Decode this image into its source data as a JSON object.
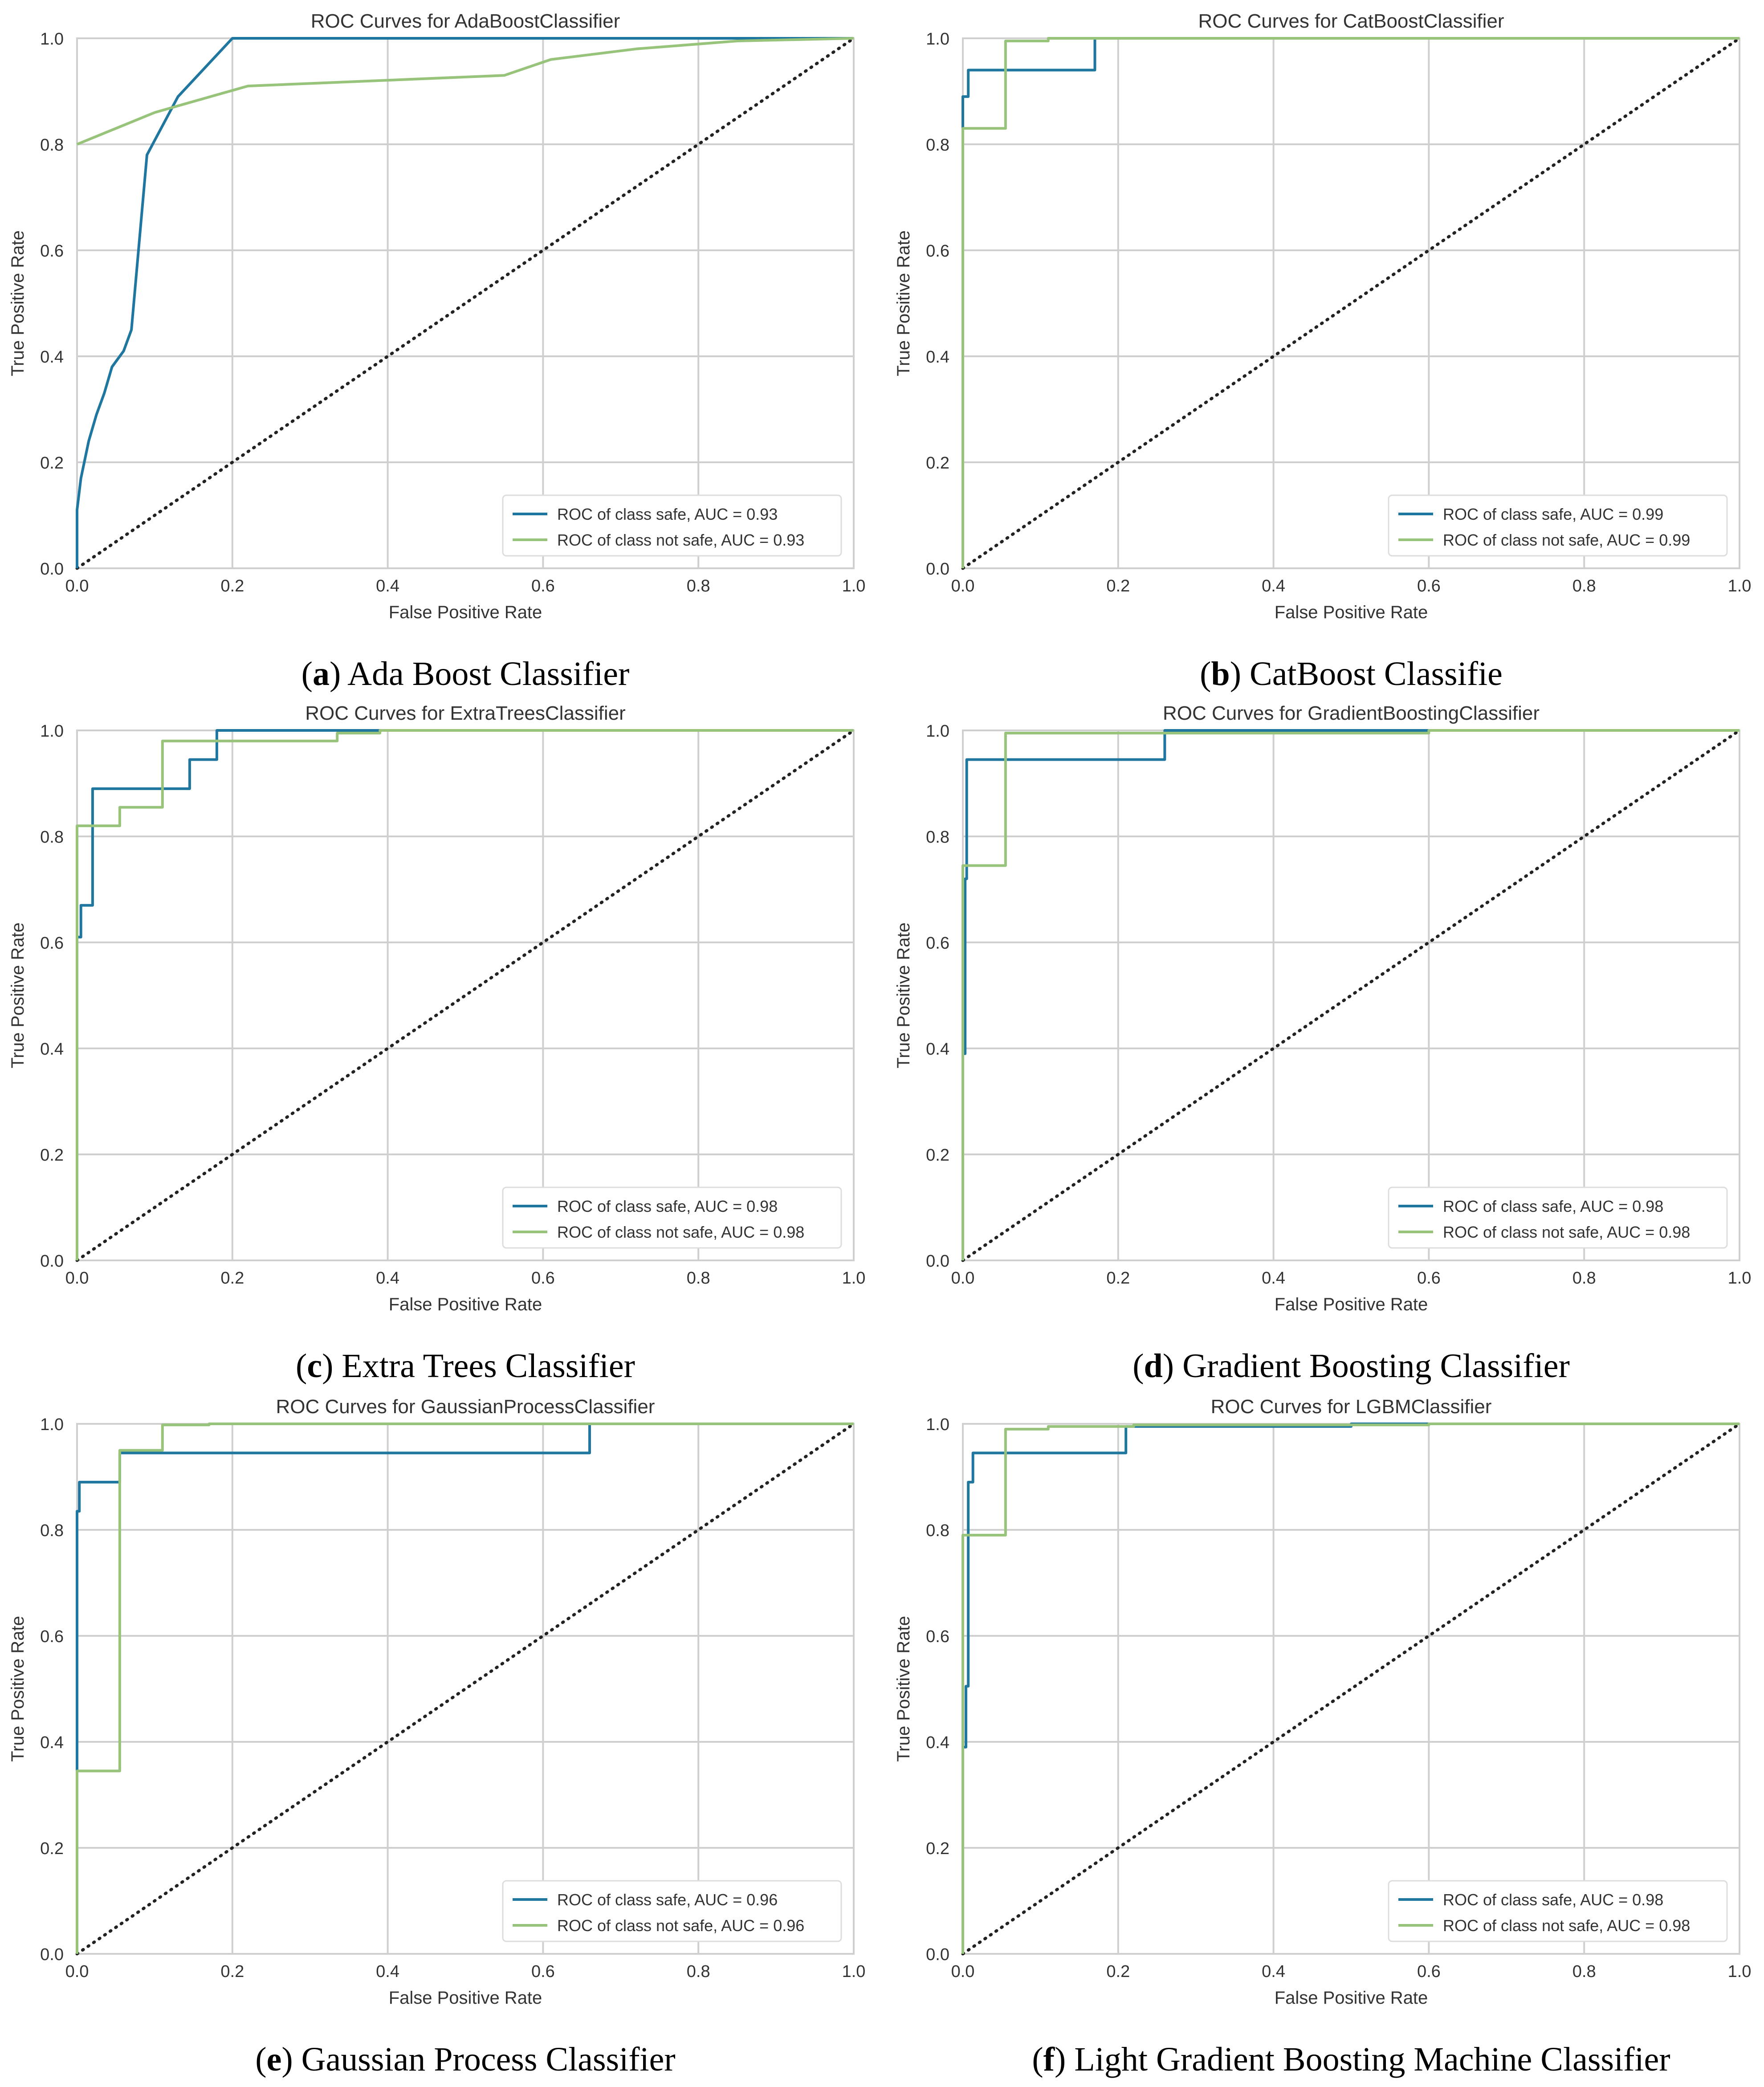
{
  "figure": {
    "colors": {
      "safe": "#1f77a0",
      "not_safe": "#98c37a",
      "grid": "#cfcfcf",
      "diagonal": "#222222",
      "text": "#333333"
    }
  },
  "chart_data": [
    {
      "type": "line",
      "panel_letter": "a",
      "caption": "Ada Boost Classifier",
      "title": "ROC Curves for AdaBoostClassifier",
      "xlabel": "False Positive Rate",
      "ylabel": "True Positive Rate",
      "xlim": [
        0,
        1
      ],
      "ylim": [
        0,
        1
      ],
      "x_ticks": [
        "0.0",
        "0.2",
        "0.4",
        "0.6",
        "0.8",
        "1.0"
      ],
      "y_ticks": [
        "0.0",
        "0.2",
        "0.4",
        "0.6",
        "0.8",
        "1.0"
      ],
      "grid": true,
      "legend_position": "lower-right",
      "series": [
        {
          "name": "ROC of class safe, AUC = 0.93",
          "key": "safe",
          "points": [
            [
              0,
              0
            ],
            [
              0,
              0.11
            ],
            [
              0.005,
              0.17
            ],
            [
              0.015,
              0.24
            ],
            [
              0.025,
              0.29
            ],
            [
              0.035,
              0.33
            ],
            [
              0.045,
              0.38
            ],
            [
              0.06,
              0.41
            ],
            [
              0.07,
              0.45
            ],
            [
              0.09,
              0.78
            ],
            [
              0.13,
              0.89
            ],
            [
              0.2,
              1.0
            ],
            [
              1,
              1
            ]
          ]
        },
        {
          "name": "ROC of class not safe, AUC = 0.93",
          "key": "not_safe",
          "points": [
            [
              0,
              0.8
            ],
            [
              0.1,
              0.86
            ],
            [
              0.22,
              0.91
            ],
            [
              0.55,
              0.93
            ],
            [
              0.61,
              0.96
            ],
            [
              0.72,
              0.98
            ],
            [
              0.85,
              0.995
            ],
            [
              1,
              1
            ]
          ]
        }
      ]
    },
    {
      "type": "line",
      "panel_letter": "b",
      "caption": "CatBoost Classifie",
      "title": "ROC Curves for CatBoostClassifier",
      "xlabel": "False Positive Rate",
      "ylabel": "True Positive Rate",
      "xlim": [
        0,
        1
      ],
      "ylim": [
        0,
        1
      ],
      "x_ticks": [
        "0.0",
        "0.2",
        "0.4",
        "0.6",
        "0.8",
        "1.0"
      ],
      "y_ticks": [
        "0.0",
        "0.2",
        "0.4",
        "0.6",
        "0.8",
        "1.0"
      ],
      "grid": true,
      "legend_position": "lower-right",
      "series": [
        {
          "name": "ROC of class safe, AUC = 0.99",
          "key": "safe",
          "points": [
            [
              0,
              0
            ],
            [
              0,
              0.89
            ],
            [
              0.007,
              0.89
            ],
            [
              0.007,
              0.94
            ],
            [
              0.17,
              0.94
            ],
            [
              0.17,
              1.0
            ],
            [
              1,
              1
            ]
          ]
        },
        {
          "name": "ROC of class not safe, AUC = 0.99",
          "key": "not_safe",
          "points": [
            [
              0,
              0
            ],
            [
              0,
              0.83
            ],
            [
              0.055,
              0.83
            ],
            [
              0.055,
              0.995
            ],
            [
              0.11,
              0.995
            ],
            [
              0.11,
              1.0
            ],
            [
              1,
              1
            ]
          ]
        }
      ]
    },
    {
      "type": "line",
      "panel_letter": "c",
      "caption": "Extra Trees Classifier",
      "title": "ROC Curves for ExtraTreesClassifier",
      "xlabel": "False Positive Rate",
      "ylabel": "True Positive Rate",
      "xlim": [
        0,
        1
      ],
      "ylim": [
        0,
        1
      ],
      "x_ticks": [
        "0.0",
        "0.2",
        "0.4",
        "0.6",
        "0.8",
        "1.0"
      ],
      "y_ticks": [
        "0.0",
        "0.2",
        "0.4",
        "0.6",
        "0.8",
        "1.0"
      ],
      "grid": true,
      "legend_position": "lower-right",
      "series": [
        {
          "name": "ROC of class safe, AUC = 0.98",
          "key": "safe",
          "points": [
            [
              0,
              0
            ],
            [
              0,
              0.61
            ],
            [
              0.005,
              0.61
            ],
            [
              0.005,
              0.67
            ],
            [
              0.02,
              0.67
            ],
            [
              0.02,
              0.89
            ],
            [
              0.145,
              0.89
            ],
            [
              0.145,
              0.945
            ],
            [
              0.18,
              0.945
            ],
            [
              0.18,
              1.0
            ],
            [
              1,
              1
            ]
          ]
        },
        {
          "name": "ROC of class not safe, AUC = 0.98",
          "key": "not_safe",
          "points": [
            [
              0,
              0
            ],
            [
              0,
              0.82
            ],
            [
              0.055,
              0.82
            ],
            [
              0.055,
              0.855
            ],
            [
              0.11,
              0.855
            ],
            [
              0.11,
              0.98
            ],
            [
              0.335,
              0.98
            ],
            [
              0.335,
              0.995
            ],
            [
              0.39,
              0.995
            ],
            [
              0.39,
              1.0
            ],
            [
              1,
              1
            ]
          ]
        }
      ]
    },
    {
      "type": "line",
      "panel_letter": "d",
      "caption": "Gradient Boosting Classifier",
      "title": "ROC Curves for GradientBoostingClassifier",
      "xlabel": "False Positive Rate",
      "ylabel": "True Positive Rate",
      "xlim": [
        0,
        1
      ],
      "ylim": [
        0,
        1
      ],
      "x_ticks": [
        "0.0",
        "0.2",
        "0.4",
        "0.6",
        "0.8",
        "1.0"
      ],
      "y_ticks": [
        "0.0",
        "0.2",
        "0.4",
        "0.6",
        "0.8",
        "1.0"
      ],
      "grid": true,
      "legend_position": "lower-right",
      "series": [
        {
          "name": "ROC of class safe, AUC = 0.98",
          "key": "safe",
          "points": [
            [
              0,
              0
            ],
            [
              0,
              0.39
            ],
            [
              0.003,
              0.39
            ],
            [
              0.003,
              0.72
            ],
            [
              0.005,
              0.72
            ],
            [
              0.005,
              0.945
            ],
            [
              0.26,
              0.945
            ],
            [
              0.26,
              1.0
            ],
            [
              1,
              1
            ]
          ]
        },
        {
          "name": "ROC of class not safe, AUC = 0.98",
          "key": "not_safe",
          "points": [
            [
              0,
              0
            ],
            [
              0,
              0.745
            ],
            [
              0.055,
              0.745
            ],
            [
              0.055,
              0.995
            ],
            [
              0.6,
              0.995
            ],
            [
              0.6,
              1.0
            ],
            [
              1,
              1
            ]
          ]
        }
      ]
    },
    {
      "type": "line",
      "panel_letter": "e",
      "caption": "Gaussian Process Classifier",
      "title": "ROC Curves for GaussianProcessClassifier",
      "xlabel": "False Positive Rate",
      "ylabel": "True Positive Rate",
      "xlim": [
        0,
        1
      ],
      "ylim": [
        0,
        1
      ],
      "x_ticks": [
        "0.0",
        "0.2",
        "0.4",
        "0.6",
        "0.8",
        "1.0"
      ],
      "y_ticks": [
        "0.0",
        "0.2",
        "0.4",
        "0.6",
        "0.8",
        "1.0"
      ],
      "grid": true,
      "legend_position": "lower-right",
      "series": [
        {
          "name": "ROC of class safe, AUC = 0.96",
          "key": "safe",
          "points": [
            [
              0,
              0
            ],
            [
              0,
              0.835
            ],
            [
              0.003,
              0.835
            ],
            [
              0.003,
              0.89
            ],
            [
              0.055,
              0.89
            ],
            [
              0.055,
              0.945
            ],
            [
              0.66,
              0.945
            ],
            [
              0.66,
              1.0
            ],
            [
              1,
              1
            ]
          ]
        },
        {
          "name": "ROC of class not safe, AUC = 0.96",
          "key": "not_safe",
          "points": [
            [
              0,
              0
            ],
            [
              0,
              0.345
            ],
            [
              0.055,
              0.345
            ],
            [
              0.055,
              0.95
            ],
            [
              0.11,
              0.95
            ],
            [
              0.11,
              0.998
            ],
            [
              0.17,
              0.998
            ],
            [
              0.17,
              1.0
            ],
            [
              1,
              1
            ]
          ]
        }
      ]
    },
    {
      "type": "line",
      "panel_letter": "f",
      "caption": "Light Gradient Boosting Machine Classifier",
      "title": "ROC Curves for LGBMClassifier",
      "xlabel": "False Positive Rate",
      "ylabel": "True Positive Rate",
      "xlim": [
        0,
        1
      ],
      "ylim": [
        0,
        1
      ],
      "x_ticks": [
        "0.0",
        "0.2",
        "0.4",
        "0.6",
        "0.8",
        "1.0"
      ],
      "y_ticks": [
        "0.0",
        "0.2",
        "0.4",
        "0.6",
        "0.8",
        "1.0"
      ],
      "grid": true,
      "legend_position": "lower-right",
      "series": [
        {
          "name": "ROC of class safe, AUC = 0.98",
          "key": "safe",
          "points": [
            [
              0,
              0
            ],
            [
              0,
              0.39
            ],
            [
              0.004,
              0.39
            ],
            [
              0.004,
              0.505
            ],
            [
              0.007,
              0.505
            ],
            [
              0.007,
              0.89
            ],
            [
              0.013,
              0.89
            ],
            [
              0.013,
              0.945
            ],
            [
              0.21,
              0.945
            ],
            [
              0.21,
              0.995
            ],
            [
              0.5,
              0.995
            ],
            [
              0.5,
              1.0
            ],
            [
              1,
              1
            ]
          ]
        },
        {
          "name": "ROC of class not safe, AUC = 0.98",
          "key": "not_safe",
          "points": [
            [
              0,
              0
            ],
            [
              0,
              0.79
            ],
            [
              0.055,
              0.79
            ],
            [
              0.055,
              0.99
            ],
            [
              0.11,
              0.99
            ],
            [
              0.11,
              0.995
            ],
            [
              0.22,
              0.995
            ],
            [
              0.22,
              0.998
            ],
            [
              0.6,
              0.998
            ],
            [
              0.6,
              1.0
            ],
            [
              1,
              1
            ]
          ]
        }
      ]
    }
  ]
}
